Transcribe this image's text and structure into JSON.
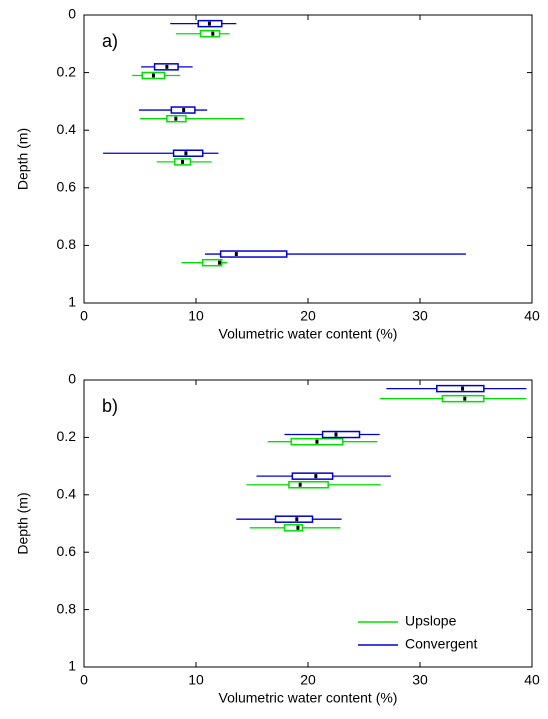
{
  "chart_data": [
    {
      "type": "box",
      "label": "a)",
      "xlabel": "Volumetric water content (%)",
      "ylabel": "Depth (m)",
      "xlim": [
        0,
        40
      ],
      "xticks": [
        0,
        10,
        20,
        30,
        40
      ],
      "ylim": [
        0,
        1
      ],
      "yticks": [
        0,
        0.2,
        0.4,
        0.6,
        0.8,
        1
      ],
      "series": [
        {
          "color": "#00e000",
          "boxes": [
            {
              "depth": 0.065,
              "min": 8.2,
              "q1": 10.4,
              "median": 11.5,
              "q3": 12.1,
              "max": 13.0
            },
            {
              "depth": 0.21,
              "min": 4.3,
              "q1": 5.2,
              "median": 6.2,
              "q3": 7.2,
              "max": 8.6
            },
            {
              "depth": 0.36,
              "min": 5.0,
              "q1": 7.4,
              "median": 8.2,
              "q3": 9.1,
              "max": 14.3
            },
            {
              "depth": 0.51,
              "min": 6.5,
              "q1": 8.1,
              "median": 8.8,
              "q3": 9.5,
              "max": 11.4
            },
            {
              "depth": 0.86,
              "min": 8.7,
              "q1": 10.6,
              "median": 12.1,
              "q3": 12.3,
              "max": 12.8
            }
          ]
        },
        {
          "color": "#0000d0",
          "boxes": [
            {
              "depth": 0.03,
              "min": 7.7,
              "q1": 10.2,
              "median": 11.2,
              "q3": 12.3,
              "max": 13.6
            },
            {
              "depth": 0.18,
              "min": 5.1,
              "q1": 6.3,
              "median": 7.4,
              "q3": 8.4,
              "max": 9.7
            },
            {
              "depth": 0.33,
              "min": 4.9,
              "q1": 7.8,
              "median": 8.9,
              "q3": 9.9,
              "max": 11.0
            },
            {
              "depth": 0.48,
              "min": 1.7,
              "q1": 8.0,
              "median": 9.1,
              "q3": 10.6,
              "max": 12.0
            },
            {
              "depth": 0.83,
              "min": 10.8,
              "q1": 12.2,
              "median": 13.6,
              "q3": 18.1,
              "max": 34.1
            }
          ]
        }
      ]
    },
    {
      "type": "box",
      "label": "b)",
      "xlabel": "Volumetric water content (%)",
      "ylabel": "Depth (m)",
      "xlim": [
        0,
        40
      ],
      "xticks": [
        0,
        10,
        20,
        30,
        40
      ],
      "ylim": [
        0,
        1
      ],
      "yticks": [
        0,
        0.2,
        0.4,
        0.6,
        0.8,
        1
      ],
      "legend": "lower right",
      "series": [
        {
          "name": "Upslope",
          "color": "#00e000",
          "boxes": [
            {
              "depth": 0.065,
              "min": 26.4,
              "q1": 32.0,
              "median": 34.0,
              "q3": 35.7,
              "max": 39.5
            },
            {
              "depth": 0.215,
              "min": 16.4,
              "q1": 18.5,
              "median": 20.8,
              "q3": 23.1,
              "max": 26.2
            },
            {
              "depth": 0.365,
              "min": 14.5,
              "q1": 18.3,
              "median": 19.3,
              "q3": 21.8,
              "max": 26.5
            },
            {
              "depth": 0.515,
              "min": 14.8,
              "q1": 17.9,
              "median": 19.1,
              "q3": 19.5,
              "max": 22.9
            }
          ]
        },
        {
          "name": "Convergent",
          "color": "#0000d0",
          "boxes": [
            {
              "depth": 0.03,
              "min": 27.0,
              "q1": 31.5,
              "median": 33.8,
              "q3": 35.7,
              "max": 39.5
            },
            {
              "depth": 0.19,
              "min": 17.9,
              "q1": 21.3,
              "median": 22.5,
              "q3": 24.6,
              "max": 26.4
            },
            {
              "depth": 0.335,
              "min": 15.4,
              "q1": 18.6,
              "median": 20.7,
              "q3": 22.2,
              "max": 27.4
            },
            {
              "depth": 0.485,
              "min": 13.6,
              "q1": 17.1,
              "median": 19.0,
              "q3": 20.4,
              "max": 23.0
            }
          ]
        }
      ]
    }
  ]
}
